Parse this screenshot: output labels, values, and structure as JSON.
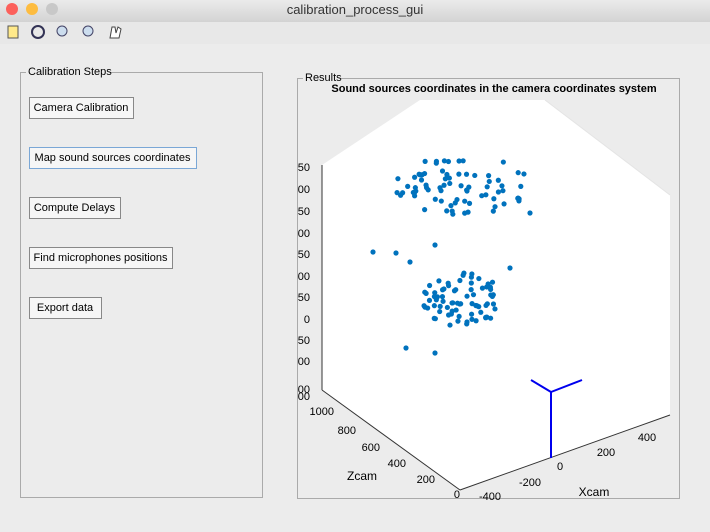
{
  "window": {
    "title": "calibration_process_gui"
  },
  "steps_panel": {
    "title": "Calibration Steps",
    "buttons": [
      "Camera Calibration",
      "Map sound sources coordinates",
      "Compute Delays",
      "Find microphones positions",
      "Export data"
    ]
  },
  "results_panel": {
    "title": "Results",
    "plot": {
      "title": "Sound sources coordinates in the camera coordinates system",
      "vertical_tick_labels": [
        "50",
        "00",
        "50",
        "00",
        "50",
        "00",
        "50",
        "0",
        "50",
        "00",
        "00",
        "00"
      ],
      "zcam_tick_labels": [
        "1000",
        "800",
        "600",
        "400",
        "200",
        "0"
      ],
      "xcam_tick_labels": [
        "-400",
        "-200",
        "0",
        "200",
        "400"
      ],
      "zcam_label": "Zcam",
      "xcam_label": "Xcam"
    }
  }
}
